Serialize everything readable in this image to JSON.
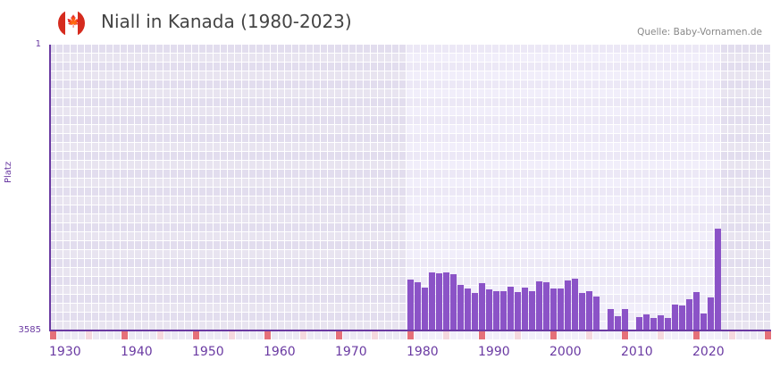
{
  "header": {
    "title": "Niall in Kanada (1980-2023)",
    "source": "Quelle: Baby-Vornamen.de",
    "flag": "canada-flag-icon"
  },
  "colors": {
    "bar": "#8b53c7",
    "axis": "#6a3aa2",
    "grid_out": "#e4e0ee",
    "grid_in": "#eeebf8",
    "tick_decade": "#e57079",
    "tick_half": "#f5d8de"
  },
  "chart_data": {
    "type": "bar",
    "title": "Niall in Kanada (1980-2023)",
    "xlabel": "",
    "ylabel": "Platz",
    "y_inverted": true,
    "ylim": [
      1,
      3585
    ],
    "y_ticks": [
      "1",
      "3585"
    ],
    "x_range": [
      1930,
      2030
    ],
    "x_ticks": [
      "1930",
      "1940",
      "1950",
      "1960",
      "1970",
      "1980",
      "1990",
      "2000",
      "2010",
      "2020"
    ],
    "highlight_range": [
      1980,
      2023
    ],
    "grid": true,
    "categories": [
      1980,
      1981,
      1982,
      1983,
      1984,
      1985,
      1986,
      1987,
      1988,
      1989,
      1990,
      1991,
      1992,
      1993,
      1994,
      1995,
      1996,
      1997,
      1998,
      1999,
      2000,
      2001,
      2002,
      2003,
      2004,
      2005,
      2006,
      2007,
      2008,
      2009,
      2010,
      2011,
      2012,
      2013,
      2014,
      2015,
      2016,
      2017,
      2018,
      2019,
      2020,
      2021,
      2022,
      2023
    ],
    "values": [
      2947,
      2980,
      3047,
      2857,
      2868,
      2857,
      2879,
      3014,
      3059,
      3115,
      2991,
      3070,
      3092,
      3092,
      3036,
      3103,
      3047,
      3092,
      2969,
      2980,
      3059,
      3059,
      2958,
      2935,
      3115,
      3092,
      3159,
      null,
      3316,
      3406,
      3316,
      null,
      3417,
      3383,
      3428,
      3395,
      3428,
      3260,
      3271,
      3193,
      3103,
      3372,
      3171,
      2308
    ]
  }
}
